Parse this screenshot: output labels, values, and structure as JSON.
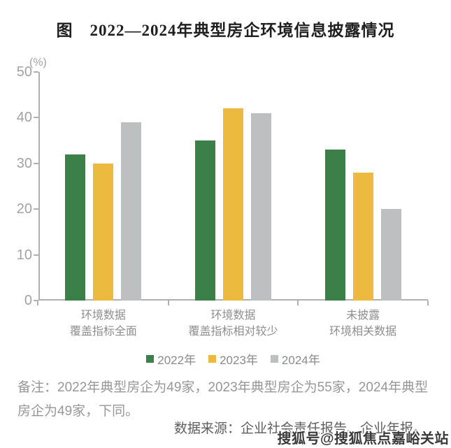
{
  "title": "图　2022—2024年典型房企环境信息披露情况",
  "note": "备注：2022年典型房企为49家，2023年典型房企为55家，2024年典型房企为49家，下同。",
  "source": "数据来源：企业社会责任报告、企业年报。",
  "watermark": "搜狐号@搜狐焦点嘉峪关站",
  "chart_data": {
    "type": "bar",
    "title": "图　2022—2024年典型房企环境信息披露情况",
    "unit_label": "(%)",
    "categories": [
      "环境数据\n覆盖指标全面",
      "环境数据\n覆盖指标相对较少",
      "未披露\n环境相关数据"
    ],
    "series": [
      {
        "name": "2022年",
        "color": "#3b8048",
        "values": [
          32,
          35,
          33
        ]
      },
      {
        "name": "2023年",
        "color": "#edba40",
        "values": [
          30,
          42,
          28
        ]
      },
      {
        "name": "2024年",
        "color": "#bdbfc1",
        "values": [
          39,
          41,
          20
        ]
      }
    ],
    "ylim": [
      0,
      50
    ],
    "yticks": [
      0,
      10,
      20,
      30,
      40,
      50
    ],
    "grid": false,
    "legend_position": "bottom",
    "axis_color": "#b0b0b0"
  }
}
